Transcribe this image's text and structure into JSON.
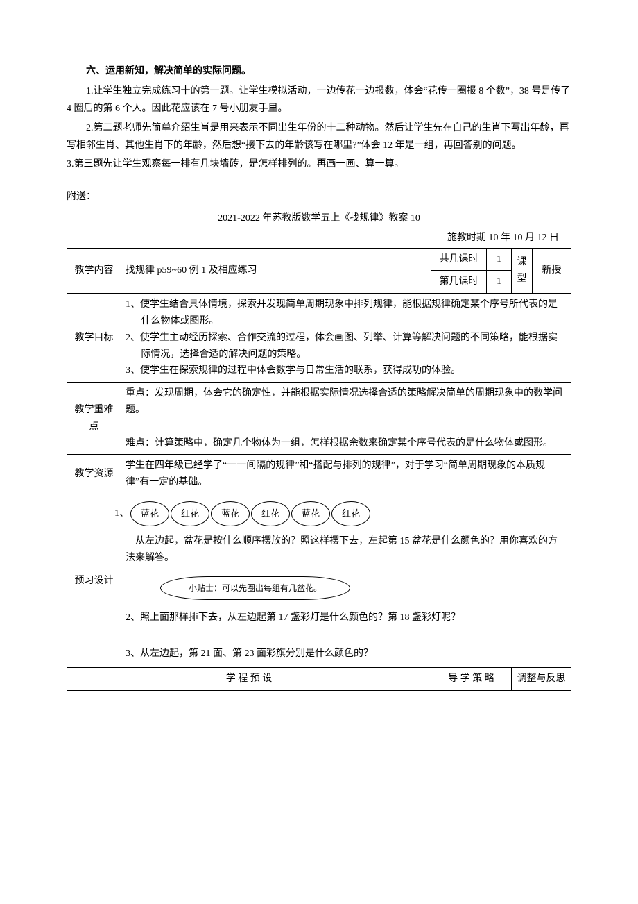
{
  "section6": {
    "heading": "六、运用新知，解决简单的实际问题。",
    "p1": "1.让学生独立完成练习十的第一题。让学生模拟活动，一边传花一边报数，体会“花传一圈报 8 个数”，38 号是传了 4 圈后的第 6 个人。因此花应该在 7 号小朋友手里。",
    "p2": "2.第二题老师先简单介绍生肖是用来表示不同出生年份的十二种动物。然后让学生先在自己的生肖下写出年龄，再写相邻生肖、其他生肖下的年龄，然后想“接下去的年龄该写在哪里?”体会 12 年是一组，再回答别的问题。",
    "p3": "3.第三题先让学生观察每一排有几块墙砖，是怎样排列的。再画一画、算一算。"
  },
  "appendix": {
    "prefix": "附送：",
    "title": "2021-2022 年苏教版数学五上《找规律》教案 10",
    "dateline": "施教时期 10   年 10 月 12 日"
  },
  "plan": {
    "row1": {
      "label": "教学内容",
      "content": "找规律 p59~60 例 1 及相应练习",
      "col3a": "共几课时",
      "col3b": "第几课时",
      "val_a": "1",
      "val_b": "1",
      "type_label": "课型",
      "type_value": "新授"
    },
    "goals": {
      "label": "教学目标",
      "items": [
        "1、使学生结合具体情境，探索并发现简单周期现象中排列规律，能根据规律确定某个序号所代表的是什么物体或图形。",
        "2、使学生主动经历探索、合作交流的过程，体会画图、列举、计算等解决问题的不同策略，能根据实际情况，选择合适的解决问题的策略。",
        "3、使学生在探索规律的过程中体会数学与日常生活的联系，获得成功的体验。"
      ]
    },
    "keydiff": {
      "label": "教学重难点",
      "p1": "重点：发现周期，体会它的确定性，并能根据实际情况选择合适的策略解决简单的周期现象中的数学问题。",
      "p2": "难点：计算策略中，确定几个物体为一组，怎样根据余数来确定某个序号代表的是什么物体或图形。"
    },
    "resources": {
      "label": "教学资源",
      "text": "学生在四年级已经学了“一一间隔的规律”和“搭配与排列的规律”，对于学习“简单周期现象的本质规律”有一定的基础。"
    },
    "preview": {
      "label": "预习设计",
      "flower_label": "1、",
      "flowers": [
        "蓝花",
        "红花",
        "蓝花",
        "红花",
        "蓝花",
        "红花"
      ],
      "q1": "从左边起，盆花是按什么顺序摆放的？照这样摆下去，左起第 15 盆花是什么颜色的？用你喜欢的方法来解答。",
      "tip": "小贴士：可以先圈出每组有几盆花。",
      "q2": "2、照上面那样排下去，从左边起第 17 盏彩灯是什么颜色的？第 18 盏彩灯呢？",
      "q3": "3、从左边起，第 21 面、第 23 面彩旗分别是什么颜色的？"
    },
    "bottom": {
      "c1": "学 程 预 设",
      "c2": "导 学 策 略",
      "c3": "调整与反思"
    }
  }
}
